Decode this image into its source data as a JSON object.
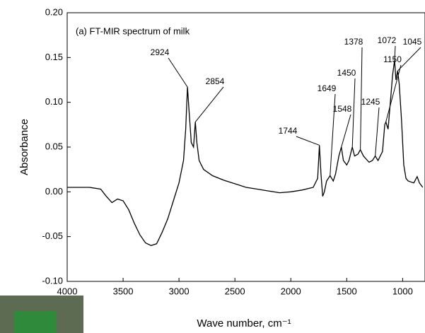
{
  "chart_data": {
    "type": "line",
    "title": "(a) FT-MIR spectrum of milk",
    "x_label": "Wave number, cm⁻¹",
    "y_label": "Absorbance",
    "color": "#000000",
    "x": [
      4000,
      3800,
      3700,
      3650,
      3600,
      3550,
      3500,
      3450,
      3400,
      3350,
      3300,
      3250,
      3200,
      3150,
      3100,
      3050,
      3000,
      2960,
      2940,
      2924,
      2910,
      2890,
      2870,
      2854,
      2840,
      2820,
      2780,
      2700,
      2600,
      2500,
      2400,
      2300,
      2200,
      2100,
      2000,
      1900,
      1800,
      1760,
      1744,
      1730,
      1715,
      1700,
      1680,
      1649,
      1620,
      1600,
      1570,
      1548,
      1530,
      1500,
      1480,
      1460,
      1450,
      1430,
      1400,
      1378,
      1350,
      1300,
      1270,
      1245,
      1220,
      1180,
      1160,
      1150,
      1130,
      1110,
      1090,
      1072,
      1060,
      1045,
      1030,
      1010,
      990,
      970,
      950,
      900,
      870,
      850,
      820
    ],
    "values": [
      0.005,
      0.005,
      0.003,
      -0.005,
      -0.012,
      -0.008,
      -0.01,
      -0.02,
      -0.035,
      -0.048,
      -0.057,
      -0.06,
      -0.058,
      -0.045,
      -0.03,
      -0.01,
      0.01,
      0.035,
      0.07,
      0.117,
      0.09,
      0.055,
      0.05,
      0.078,
      0.055,
      0.035,
      0.025,
      0.018,
      0.013,
      0.009,
      0.005,
      0.003,
      0.001,
      -0.001,
      0.0,
      0.002,
      0.005,
      0.015,
      0.052,
      0.02,
      -0.005,
      0.0,
      0.012,
      0.018,
      0.012,
      0.02,
      0.04,
      0.05,
      0.035,
      0.03,
      0.035,
      0.045,
      0.05,
      0.04,
      0.042,
      0.047,
      0.04,
      0.033,
      0.035,
      0.04,
      0.035,
      0.045,
      0.075,
      0.078,
      0.07,
      0.1,
      0.13,
      0.147,
      0.125,
      0.135,
      0.12,
      0.08,
      0.03,
      0.015,
      0.012,
      0.01,
      0.017,
      0.01,
      0.005
    ],
    "peak_labels": [
      2924,
      2854,
      1744,
      1649,
      1548,
      1450,
      1378,
      1245,
      1150,
      1072,
      1045
    ],
    "xlim": [
      4000,
      800
    ],
    "xticks": [
      4000,
      3500,
      3000,
      2500,
      2000,
      1500,
      1000
    ],
    "ylim": [
      -0.1,
      0.2
    ],
    "yticks": [
      {
        "value": -0.1,
        "label": "-0.10"
      },
      {
        "value": -0.05,
        "label": "-0.05"
      },
      {
        "value": 0,
        "label": "0.00"
      },
      {
        "value": 0.05,
        "label": "0.05"
      },
      {
        "value": 0.1,
        "label": "0.10"
      },
      {
        "value": 0.15,
        "label": "0.15"
      },
      {
        "value": 0.2,
        "label": "0.20"
      }
    ],
    "grid": false
  }
}
